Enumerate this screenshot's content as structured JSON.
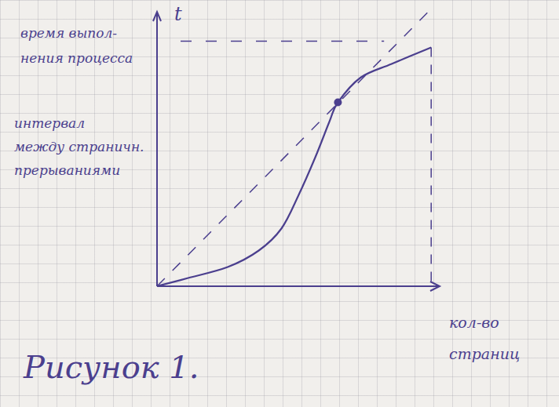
{
  "chart_data": {
    "type": "line",
    "title": "Рисунок 1.",
    "y_label": [
      "время выпол-",
      "нения процесса"
    ],
    "y_symbol": "t",
    "annotation": [
      "интервал",
      "между страничн.",
      "прерываниями"
    ],
    "x_label": [
      "кол-во",
      "страниц"
    ],
    "xlim": [
      0,
      10
    ],
    "ylim": [
      0,
      10
    ],
    "tick_labels": false,
    "grid": false,
    "color": "#4b3f8e",
    "series": [
      {
        "x": [
          0,
          1.1,
          2.5,
          3.6,
          4.4,
          5,
          5.6,
          6.1,
          6.4,
          7.2,
          8.3,
          9.7
        ],
        "values": [
          0,
          0.3,
          0.7,
          1.3,
          2.1,
          3.3,
          4.7,
          6,
          6.7,
          7.6,
          8.1,
          8.7
        ],
        "line_style": "solid"
      },
      {
        "x": [
          0,
          9.6
        ],
        "values": [
          0,
          10
        ],
        "line_style": "dashed"
      },
      {
        "type": "scatter",
        "x": [
          6.4
        ],
        "values": [
          6.7
        ],
        "marker": "circle"
      }
    ]
  }
}
